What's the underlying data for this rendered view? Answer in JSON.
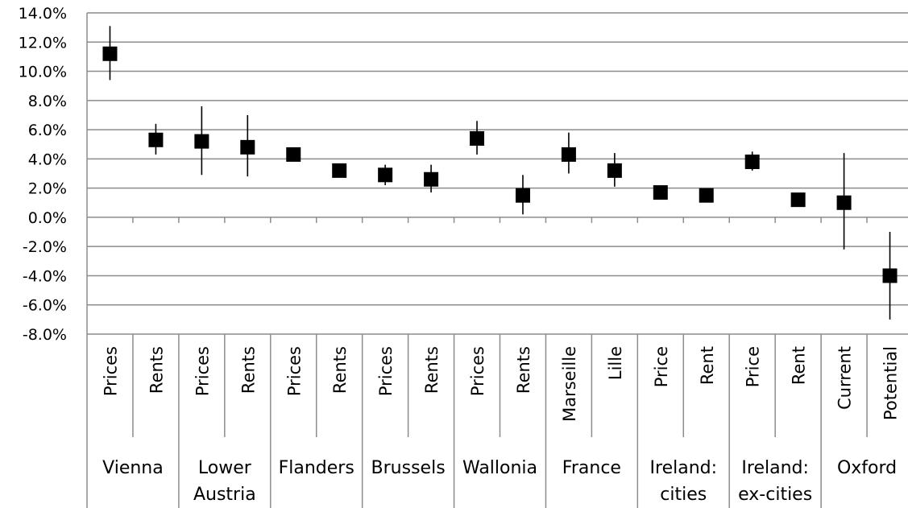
{
  "chart_data": {
    "type": "scatter",
    "title": "",
    "xlabel": "",
    "ylabel": "",
    "ylim": [
      -8.0,
      14.0
    ],
    "ytick_values": [
      14,
      12,
      10,
      8,
      6,
      4,
      2,
      0,
      -2,
      -4,
      -6,
      -8
    ],
    "ytick_labels": [
      "14.0%",
      "12.0%",
      "10.0%",
      "8.0%",
      "6.0%",
      "4.0%",
      "2.0%",
      "0.0%",
      "-2.0%",
      "-4.0%",
      "-6.0%",
      "-8.0%"
    ],
    "grid": true,
    "legend": "none",
    "marker_color": "#000000",
    "categories": [
      "Prices",
      "Rents",
      "Prices",
      "Rents",
      "Prices",
      "Rents",
      "Prices",
      "Rents",
      "Prices",
      "Rents",
      "Marseille",
      "Lille",
      "Price",
      "Rent",
      "Price",
      "Rent",
      "Current",
      "Potential"
    ],
    "groups": [
      {
        "label": [
          "Vienna"
        ],
        "span": 2
      },
      {
        "label": [
          "Lower",
          "Austria"
        ],
        "span": 2
      },
      {
        "label": [
          "Flanders"
        ],
        "span": 2
      },
      {
        "label": [
          "Brussels"
        ],
        "span": 2
      },
      {
        "label": [
          "Wallonia"
        ],
        "span": 2
      },
      {
        "label": [
          "France"
        ],
        "span": 2
      },
      {
        "label": [
          "Ireland:",
          "cities"
        ],
        "span": 2
      },
      {
        "label": [
          "Ireland:",
          "ex-cities"
        ],
        "span": 2
      },
      {
        "label": [
          "Oxford"
        ],
        "span": 2
      }
    ],
    "series": [
      {
        "values": [
          11.2,
          5.3,
          5.2,
          4.8,
          4.3,
          3.2,
          2.9,
          2.6,
          5.4,
          1.5,
          4.3,
          3.2,
          1.7,
          1.5,
          3.8,
          1.2,
          1.0,
          -4.0
        ],
        "low": [
          9.4,
          4.3,
          2.9,
          2.8,
          4.2,
          3.1,
          2.2,
          1.7,
          4.3,
          0.2,
          3.0,
          2.1,
          1.3,
          1.4,
          3.2,
          1.1,
          -2.2,
          -7.0
        ],
        "high": [
          13.1,
          6.4,
          7.6,
          7.0,
          4.4,
          3.3,
          3.6,
          3.6,
          6.6,
          2.9,
          5.8,
          4.4,
          2.0,
          1.6,
          4.5,
          1.3,
          4.4,
          -1.0
        ]
      }
    ]
  }
}
